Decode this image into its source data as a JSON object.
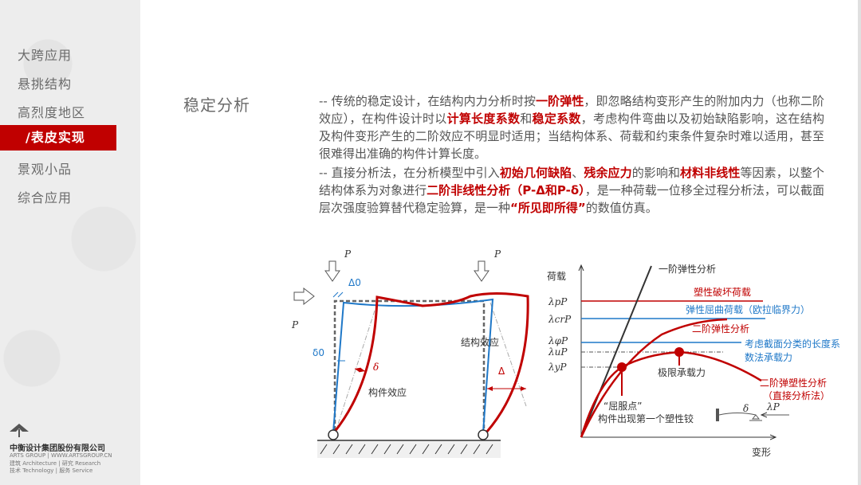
{
  "sidebar": {
    "items": [
      {
        "label": "大跨应用"
      },
      {
        "label": "悬挑结构"
      },
      {
        "label": "高烈度地区"
      },
      {
        "label": "/表皮实现",
        "active": true
      },
      {
        "label": "景观小品"
      },
      {
        "label": "综合应用"
      }
    ]
  },
  "logo": {
    "name": "中衡设计集团股份有限公司",
    "line1": "ARTS GROUP  |  WWW.ARTSGROUP.CN",
    "line2": "建筑 Architecture  | 研究 Research",
    "line3": "技术 Technology   | 服务 Service"
  },
  "title": "稳定分析",
  "paragraphs": [
    [
      {
        "t": "-- 传统的稳定设计，在结构内力分析时按"
      },
      {
        "t": "一阶弹性",
        "hl": true
      },
      {
        "t": "，即忽略结构变形产生的附加内力（也称二阶效应），在构件设计时以"
      },
      {
        "t": "计算长度系数",
        "hl": true
      },
      {
        "t": "和"
      },
      {
        "t": "稳定系数",
        "hl": true
      },
      {
        "t": "，考虑构件弯曲以及初始缺陷影响，这在结构及构件变形产生的二阶效应不明显时适用；当结构体系、荷载和约束条件复杂时难以适用，甚至很难得出准确的构件计算长度。"
      }
    ],
    [
      {
        "t": "-- 直接分析法，在分析模型中引入"
      },
      {
        "t": "初始几何缺陷",
        "hl": true
      },
      {
        "t": "、"
      },
      {
        "t": "残余应力",
        "hl": true
      },
      {
        "t": "的影响和"
      },
      {
        "t": "材料非线性",
        "hl": true
      },
      {
        "t": "等因素，以整个结构体系为对象进行"
      },
      {
        "t": "二阶非线性分析（P-Δ和P-δ）",
        "hl": true
      },
      {
        "t": "，是一种荷载一位移全过程分析法，可以截面层次强度验算替代稳定验算，是一种"
      },
      {
        "t": "“所见即所得”",
        "hl": true
      },
      {
        "t": "的数值仿真。"
      }
    ]
  ],
  "frame": {
    "P_top_left": "P",
    "P_top_right": "P",
    "P_side": "P",
    "delta0_cap": "Δ0",
    "delta0": "δ0",
    "delta": "δ",
    "Delta": "Δ",
    "member_effect": "构件效应",
    "structure_effect": "结构效应"
  },
  "graph": {
    "ylabel": "荷载",
    "xlabel": "变形",
    "ticks": [
      "λpP",
      "λcrP",
      "λφP",
      "λuP",
      "λyP"
    ],
    "first_order": "一阶弹性分析",
    "plastic_load": "塑性破坏荷载",
    "elastic_buckling": "弹性屈曲荷载（欧拉临界力）",
    "second_elastic": "二阶弹性分析",
    "eff_len_1": "考虑截面分类的长度系",
    "eff_len_2": "数法承载力",
    "ultimate": "极限承载力",
    "second_plastic_1": "二阶弹塑性分析",
    "second_plastic_2": "（直接分析法）",
    "yield_1": "“屈服点”",
    "yield_2": "构件出现第一个塑性铰",
    "inset_delta": "δ",
    "inset_load": "λP"
  },
  "colors": {
    "accent": "#c00000",
    "blue": "#1f78c8"
  }
}
